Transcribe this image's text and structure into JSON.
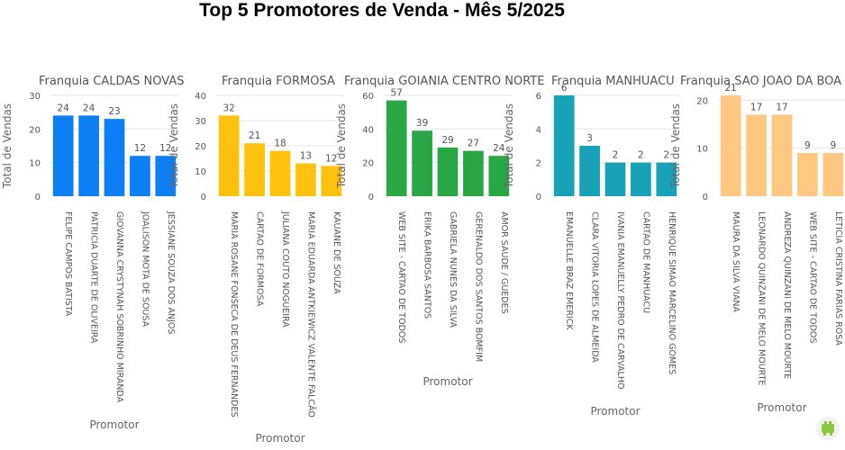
{
  "title": "Top 5 Promotores de Venda - Mês 5/2025",
  "chart_data": [
    {
      "type": "bar",
      "title": "Franquia CALDAS NOVAS",
      "xlabel": "Promotor",
      "ylabel": "Total de Vendas",
      "ylim": [
        0,
        30
      ],
      "yticks": [
        0,
        10,
        20,
        30
      ],
      "color": "#0d7ff5",
      "categories": [
        "FELIPE CAMPOS BATISTA",
        "PATRICIA DUARTE DE OLIVEIRA",
        "GIOVANNA CRYSTYNAH SOBRINHO MIRANDA",
        "JOALISON MOTA DE SOUSA",
        "JESSIANE SOUZA DOS ANJOS"
      ],
      "values": [
        24,
        24,
        23,
        12,
        12
      ]
    },
    {
      "type": "bar",
      "title": "Franquia FORMOSA",
      "xlabel": "Promotor",
      "ylabel": "Total de Vendas",
      "ylim": [
        0,
        40
      ],
      "yticks": [
        0,
        10,
        20,
        30,
        40
      ],
      "color": "#fec20e",
      "categories": [
        "MARIA ROSANE FONSECA DE DEUS FERNANDES",
        "CARTAO DE FORMOSA",
        "JULIANA COUTO NOGUEIRA",
        "MARIA EDUARDA ANTKIEWICZ VALENTE FALCÃO",
        "KAUANE DE SOUZA"
      ],
      "values": [
        32,
        21,
        18,
        13,
        12
      ]
    },
    {
      "type": "bar",
      "title": "Franquia GOIANIA CENTRO NORTE",
      "xlabel": "Promotor",
      "ylabel": "Total de Vendas",
      "ylim": [
        0,
        60
      ],
      "yticks": [
        0,
        20,
        40,
        60
      ],
      "color": "#2aa745",
      "categories": [
        "WEB SITE - CARTAO DE TODOS",
        "ERIKA BARBOSA SANTOS",
        "GABRIELA NUNES DA SILVA",
        "GERENALDO DOS SANTOS BOMFIM",
        "AMOR SAUDE / GUEDES"
      ],
      "values": [
        57,
        39,
        29,
        27,
        24
      ]
    },
    {
      "type": "bar",
      "title": "Franquia MANHUACU",
      "xlabel": "Promotor",
      "ylabel": "Total de Vendas",
      "ylim": [
        0,
        6
      ],
      "yticks": [
        0,
        2,
        4,
        6
      ],
      "color": "#17a2b8",
      "categories": [
        "EMANUELLE BRAZ EMERICK",
        "CLARA VITORIA LOPES DE ALMEIDA",
        "IVANIA EMANUELLY PEDRO DE CARVALHO",
        "CARTAO DE MANHUACU",
        "HENRIQUE SIMAO MARCELINO GOMES"
      ],
      "values": [
        6,
        3,
        2,
        2,
        2
      ]
    },
    {
      "type": "bar",
      "title": "Franquia SAO JOAO DA BOA",
      "xlabel": "Promotor",
      "ylabel": "Total de Vendas",
      "ylim": [
        0,
        21
      ],
      "yticks": [
        0,
        10,
        20
      ],
      "color": "#fec882",
      "categories": [
        "MAURA DA SILVA VIANA",
        "LEONARDO QUINZANI DE MELO MOURTE",
        "ANDREZA QUINZANI DE MELO MOURTE",
        "WEB SITE - CARTAO DE TODOS",
        "LETICIA CRISTINA FARIAS ROSA"
      ],
      "values": [
        21,
        17,
        17,
        9,
        9
      ]
    }
  ]
}
